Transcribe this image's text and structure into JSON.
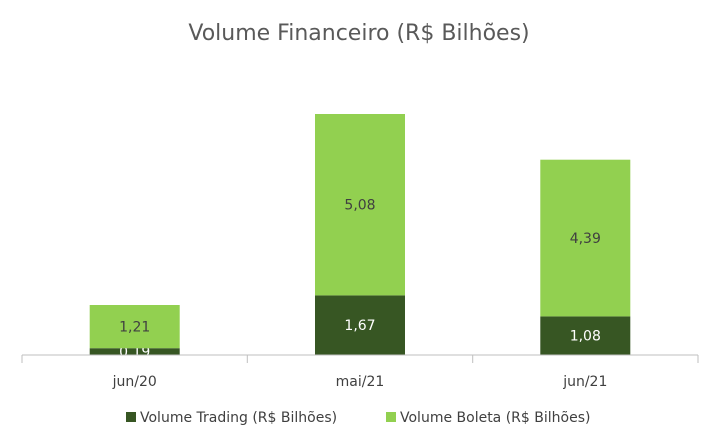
{
  "chart_data": {
    "type": "bar",
    "stacked": true,
    "title": "Volume Financeiro (R$ Bilhões)",
    "categories": [
      "jun/20",
      "mai/21",
      "jun/21"
    ],
    "series": [
      {
        "name": "Volume Trading (R$ Bilhões)",
        "values": [
          0.19,
          1.67,
          1.08
        ],
        "labels": [
          "0,19",
          "1,67",
          "1,08"
        ],
        "color": "#375623",
        "label_color": "#ffffff"
      },
      {
        "name": "Volume Boleta (R$ Bilhões)",
        "values": [
          1.21,
          5.08,
          4.39
        ],
        "labels": [
          "1,21",
          "5,08",
          "4,39"
        ],
        "color": "#92d050",
        "label_color": "#404040"
      }
    ],
    "ylim": [
      0,
      7
    ],
    "grid": false,
    "legend_position": "bottom"
  }
}
